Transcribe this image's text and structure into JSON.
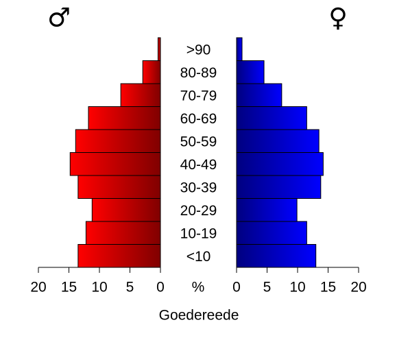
{
  "chart_data": {
    "type": "pyramid",
    "title": "Goedereede",
    "xlabel": "%",
    "categories": [
      "<10",
      "10-19",
      "20-29",
      "30-39",
      "40-49",
      "50-59",
      "60-69",
      "70-79",
      "80-89",
      ">90"
    ],
    "series": [
      {
        "name": "♂",
        "color": "#ff0000",
        "values": [
          13.5,
          12.2,
          11.2,
          13.5,
          14.8,
          13.9,
          11.8,
          6.5,
          2.9,
          0.4
        ]
      },
      {
        "name": "♀",
        "color": "#0000ff",
        "values": [
          13.0,
          11.5,
          9.9,
          13.8,
          14.2,
          13.5,
          11.5,
          7.4,
          4.5,
          0.9
        ]
      }
    ],
    "xlim": [
      0,
      20
    ],
    "xticks": [
      0,
      5,
      10,
      15,
      20
    ]
  }
}
